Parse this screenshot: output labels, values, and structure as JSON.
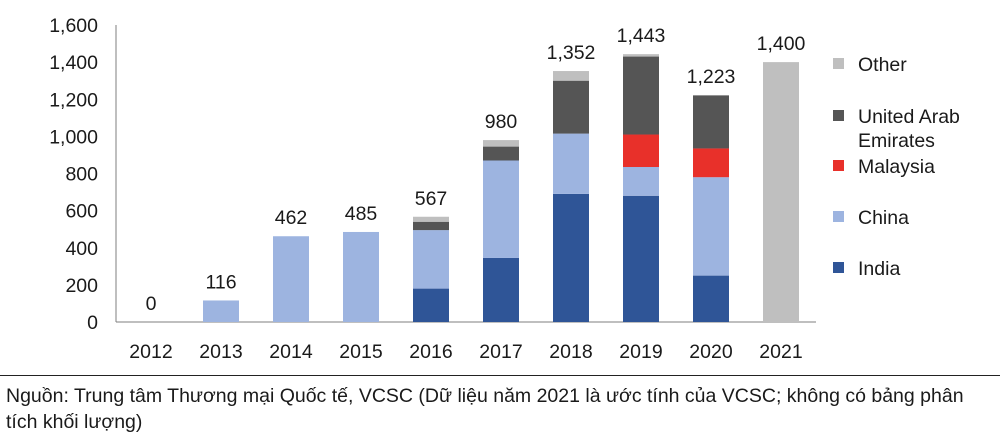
{
  "chart_data": {
    "type": "bar",
    "stacked": true,
    "title": "",
    "xlabel": "",
    "ylabel": "",
    "ylim": [
      0,
      1600
    ],
    "yticks": [
      0,
      200,
      400,
      600,
      800,
      1000,
      1200,
      1400,
      1600
    ],
    "ytick_labels": [
      "0",
      "200",
      "400",
      "600",
      "800",
      "1,000",
      "1,200",
      "1,400",
      "1,600"
    ],
    "grid": false,
    "legend_position": "right",
    "categories": [
      "2012",
      "2013",
      "2014",
      "2015",
      "2016",
      "2017",
      "2018",
      "2019",
      "2020",
      "2021"
    ],
    "series": [
      {
        "name": "India",
        "color": "#2f5597",
        "values": [
          0,
          0,
          0,
          0,
          180,
          345,
          690,
          680,
          250,
          0
        ]
      },
      {
        "name": "China",
        "color": "#9db4e0",
        "values": [
          0,
          116,
          462,
          485,
          315,
          525,
          325,
          155,
          530,
          0
        ]
      },
      {
        "name": "Malaysia",
        "color": "#e8302a",
        "values": [
          0,
          0,
          0,
          0,
          0,
          0,
          0,
          175,
          155,
          0
        ]
      },
      {
        "name": "United Arab Emirates",
        "legend_lines": [
          "United Arab",
          "Emirates"
        ],
        "color": "#555555",
        "values": [
          0,
          0,
          0,
          0,
          45,
          75,
          285,
          420,
          285,
          0
        ]
      },
      {
        "name": "Other",
        "color": "#bfbfbf",
        "values": [
          0,
          0,
          0,
          0,
          27,
          35,
          52,
          13,
          3,
          1400
        ]
      }
    ],
    "totals": [
      0,
      116,
      462,
      485,
      567,
      980,
      1352,
      1443,
      1223,
      1400
    ],
    "total_labels": [
      "0",
      "116",
      "462",
      "485",
      "567",
      "980",
      "1,352",
      "1,443",
      "1,223",
      "1,400"
    ]
  },
  "source_text": "Nguồn: Trung tâm Thương mại Quốc tế, VCSC (Dữ liệu năm 2021 là ước tính của VCSC; không có bảng phân tích khối lượng)"
}
